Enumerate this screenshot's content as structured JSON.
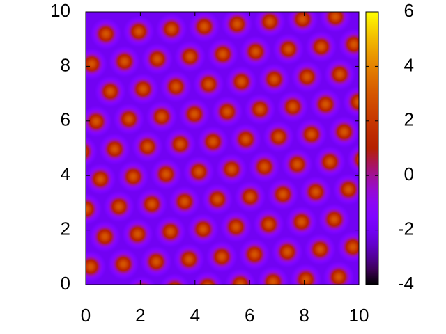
{
  "chart_data": {
    "type": "heatmap",
    "xlim": [
      0,
      10
    ],
    "ylim": [
      0,
      10
    ],
    "xticks": [
      0,
      2,
      4,
      6,
      8,
      10
    ],
    "yticks": [
      0,
      2,
      4,
      6,
      8,
      10
    ],
    "colorbar": {
      "lim": [
        -4,
        6
      ],
      "ticks": [
        -4,
        -2,
        0,
        2,
        4,
        6
      ]
    },
    "background_value": -2,
    "peaks": {
      "x": [
        2.06,
        3.26,
        4.46,
        5.66,
        6.86,
        8.06,
        9.26,
        0.18,
        1.38,
        2.58,
        3.78,
        4.98,
        6.18,
        7.38,
        8.58,
        9.78,
        0.7,
        1.9,
        3.1,
        4.3,
        5.5,
        6.7,
        7.9,
        9.1,
        0.02,
        1.22,
        2.42,
        3.62,
        4.82,
        6.02,
        7.22,
        8.42,
        9.62,
        0.54,
        1.74,
        2.94,
        4.14,
        5.34,
        6.54,
        7.74,
        8.94,
        10.14,
        -0.14,
        1.06,
        2.26,
        3.46,
        4.66,
        5.86,
        7.06,
        8.26,
        9.46,
        0.38,
        1.58,
        2.78,
        3.98,
        5.18,
        6.38,
        7.58,
        8.78,
        9.98,
        0.9,
        2.1,
        3.3,
        4.5,
        5.7,
        6.9,
        8.1,
        9.3,
        0.22,
        1.42,
        2.62,
        3.82,
        5.02,
        6.22,
        7.42,
        8.62,
        9.82,
        0.74,
        1.94,
        3.14,
        4.34,
        5.54,
        6.74,
        7.94,
        9.14
      ],
      "y": [
        -0.26,
        -0.17,
        -0.08,
        0.01,
        0.1,
        0.19,
        0.28,
        0.66,
        0.75,
        0.84,
        0.93,
        1.02,
        1.11,
        1.2,
        1.29,
        1.38,
        1.76,
        1.85,
        1.94,
        2.03,
        2.12,
        2.21,
        2.3,
        2.39,
        2.77,
        2.86,
        2.95,
        3.04,
        3.13,
        3.22,
        3.31,
        3.4,
        3.49,
        3.87,
        3.96,
        4.05,
        4.14,
        4.23,
        4.32,
        4.41,
        4.5,
        4.59,
        4.88,
        4.97,
        5.06,
        5.15,
        5.24,
        5.33,
        5.42,
        5.51,
        5.6,
        5.98,
        6.07,
        6.16,
        6.25,
        6.34,
        6.43,
        6.52,
        6.61,
        6.7,
        7.08,
        7.17,
        7.26,
        7.35,
        7.44,
        7.53,
        7.62,
        7.71,
        8.09,
        8.18,
        8.27,
        8.36,
        8.45,
        8.54,
        8.63,
        8.72,
        8.81,
        9.19,
        9.28,
        9.37,
        9.46,
        9.55,
        9.64,
        9.73,
        9.82
      ],
      "values": [
        3,
        3,
        3,
        3,
        3,
        3,
        3,
        3,
        3,
        3,
        3,
        3,
        3,
        3,
        3,
        3,
        3,
        3,
        3,
        3,
        3,
        3,
        3,
        3,
        3,
        3,
        3,
        3,
        3,
        3,
        3,
        3,
        3,
        3,
        3,
        3,
        3,
        3,
        3,
        3,
        3,
        3,
        3,
        3,
        3,
        3,
        3,
        3,
        3,
        3,
        3,
        3,
        3,
        3,
        3,
        3,
        3,
        3,
        3,
        3,
        3,
        3,
        3,
        3,
        3,
        3,
        3,
        3,
        3,
        3,
        3,
        3,
        3,
        3,
        3,
        3,
        3,
        3,
        3,
        3,
        3,
        3,
        3,
        3,
        3
      ]
    }
  }
}
